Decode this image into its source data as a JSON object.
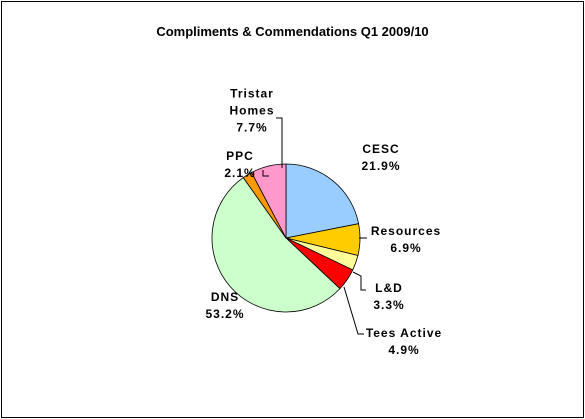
{
  "chart_data": {
    "type": "pie",
    "title": "Compliments & Commendations Q1 2009/10",
    "categories": [
      "CESC",
      "Resources",
      "L&D",
      "Tees Active",
      "DNS",
      "PPC",
      "Tristar Homes"
    ],
    "values": [
      21.9,
      6.9,
      3.3,
      4.9,
      53.2,
      2.1,
      7.7
    ],
    "value_labels": [
      "21.9%",
      "6.9%",
      "3.3%",
      "4.9%",
      "53.2%",
      "2.1%",
      "7.7%"
    ],
    "colors": [
      "#99ccff",
      "#ffcc00",
      "#ffff99",
      "#ff0000",
      "#ccffcc",
      "#ff9900",
      "#ff99cc"
    ]
  }
}
